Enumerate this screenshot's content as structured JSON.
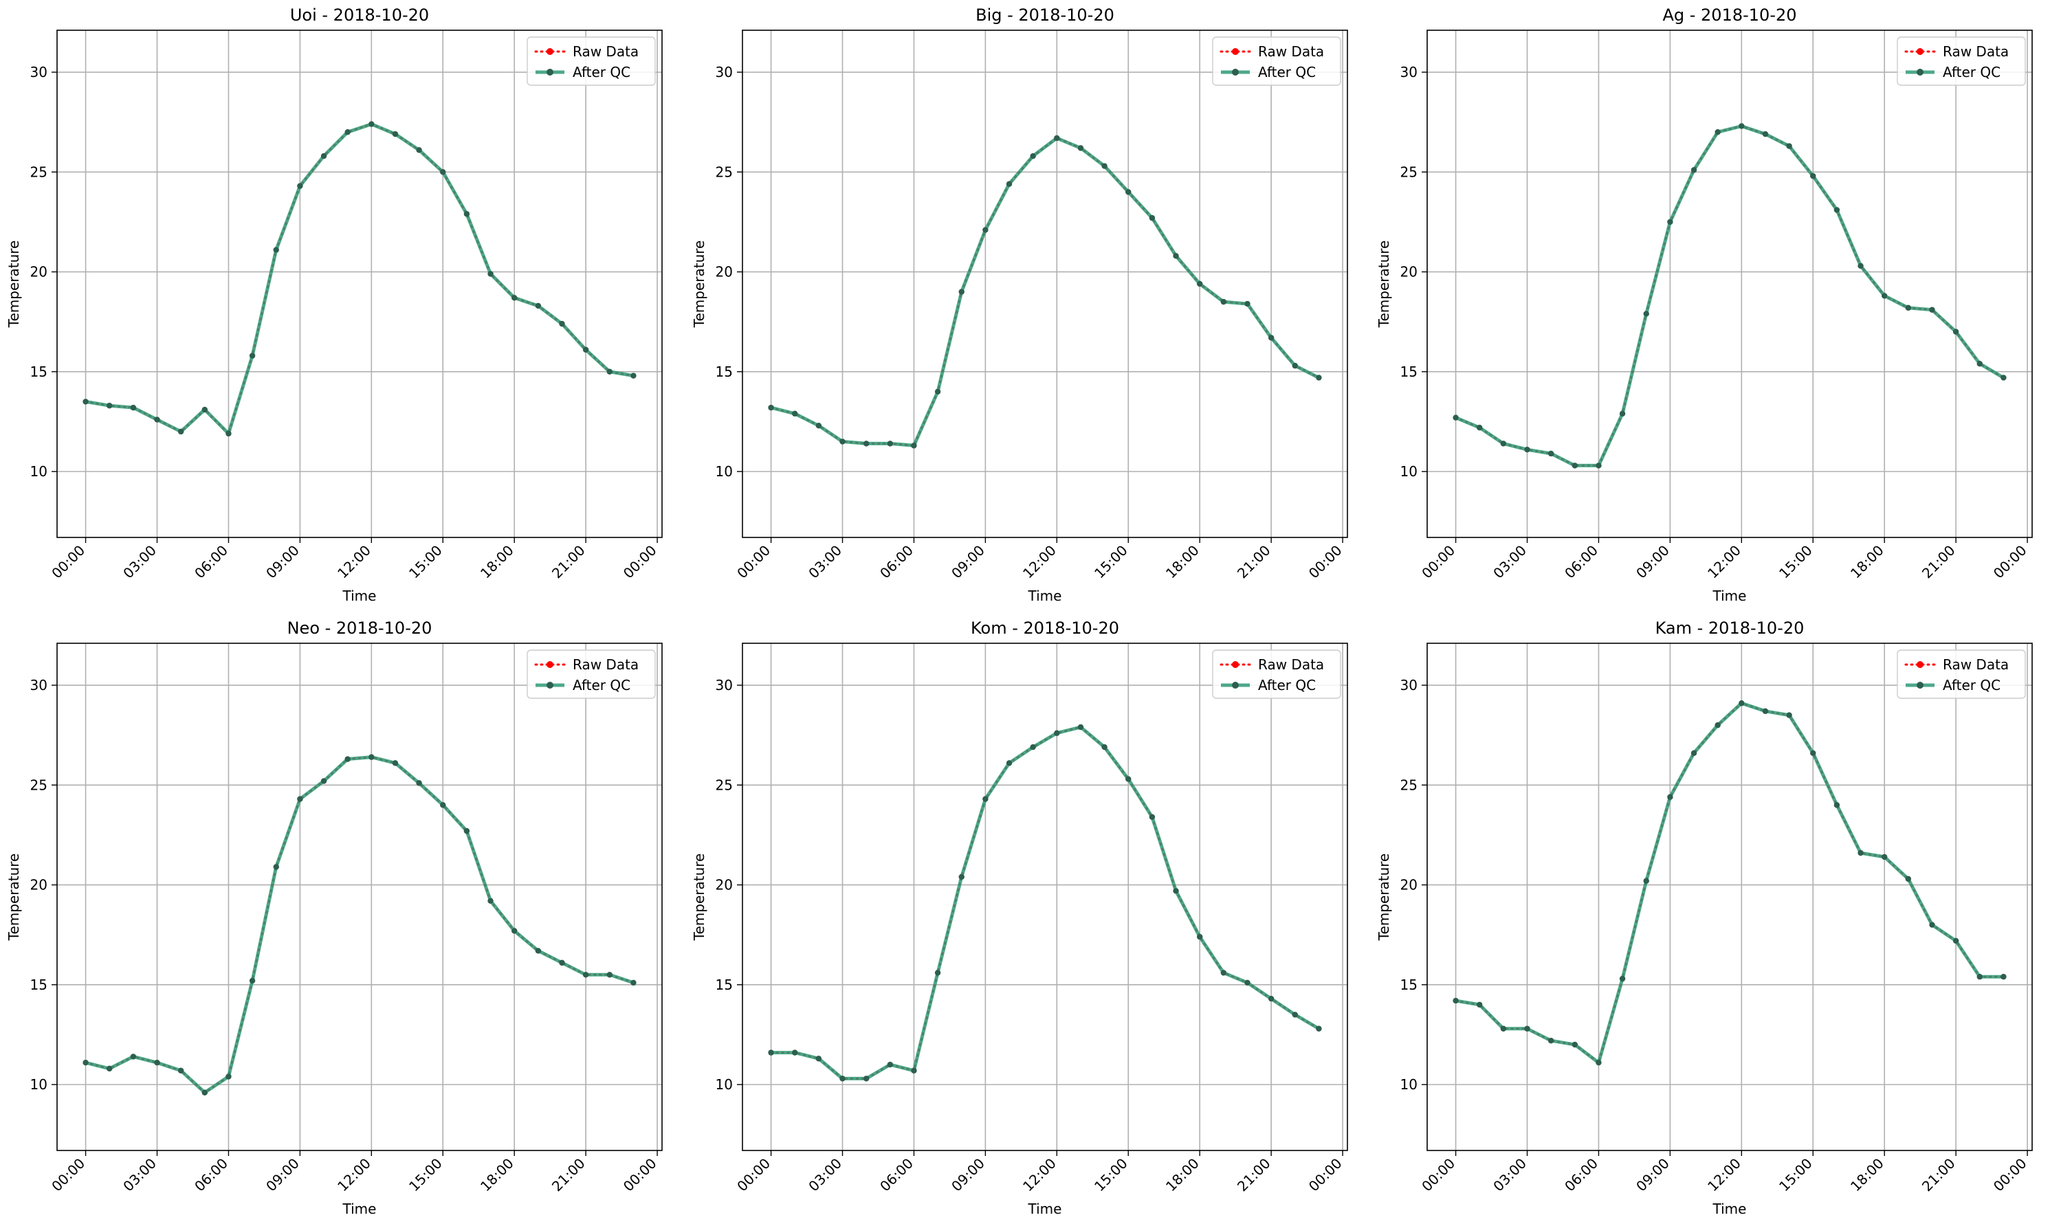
{
  "figure": {
    "legend_labels": [
      "Raw Data",
      "After QC"
    ],
    "colors": {
      "raw": "#ff0000",
      "qc": "#2e9a77",
      "qc_marker": "#2c5f4f",
      "grid": "#b0b0b0"
    }
  },
  "chart_data": [
    {
      "type": "line",
      "title": "Uoi - 2018-10-20",
      "xlabel": "Time",
      "ylabel": "Temperature",
      "x_ticks": [
        "00:00",
        "03:00",
        "06:00",
        "09:00",
        "12:00",
        "15:00",
        "18:00",
        "21:00",
        "00:00"
      ],
      "y_ticks": [
        10,
        15,
        20,
        25,
        30
      ],
      "xlim_hours": [
        -1.2,
        24.2
      ],
      "ylim": [
        6.7,
        32.1
      ],
      "grid": true,
      "legend_position": "top-right",
      "x_hours": [
        0,
        1,
        2,
        3,
        4,
        5,
        6,
        7,
        8,
        9,
        10,
        11,
        12,
        13,
        14,
        15,
        16,
        17,
        18,
        19,
        20,
        21,
        22,
        23
      ],
      "series": [
        {
          "name": "Raw Data",
          "style": "dotted",
          "values": [
            13.5,
            13.3,
            13.2,
            12.6,
            12.0,
            13.1,
            11.9,
            15.8,
            21.1,
            24.3,
            25.8,
            27.0,
            27.4,
            26.9,
            26.1,
            25.0,
            22.9,
            19.9,
            18.7,
            18.3,
            17.4,
            16.1,
            15.0,
            14.8
          ]
        },
        {
          "name": "After QC",
          "style": "solid",
          "values": [
            13.5,
            13.3,
            13.2,
            12.6,
            12.0,
            13.1,
            11.9,
            15.8,
            21.1,
            24.3,
            25.8,
            27.0,
            27.4,
            26.9,
            26.1,
            25.0,
            22.9,
            19.9,
            18.7,
            18.3,
            17.4,
            16.1,
            15.0,
            14.8
          ]
        }
      ]
    },
    {
      "type": "line",
      "title": "Big - 2018-10-20",
      "xlabel": "Time",
      "ylabel": "Temperature",
      "x_ticks": [
        "00:00",
        "03:00",
        "06:00",
        "09:00",
        "12:00",
        "15:00",
        "18:00",
        "21:00",
        "00:00"
      ],
      "y_ticks": [
        10,
        15,
        20,
        25,
        30
      ],
      "xlim_hours": [
        -1.2,
        24.2
      ],
      "ylim": [
        6.7,
        32.1
      ],
      "grid": true,
      "legend_position": "top-right",
      "x_hours": [
        0,
        1,
        2,
        3,
        4,
        5,
        6,
        7,
        8,
        9,
        10,
        11,
        12,
        13,
        14,
        15,
        16,
        17,
        18,
        19,
        20,
        21,
        22,
        23
      ],
      "series": [
        {
          "name": "Raw Data",
          "style": "dotted",
          "values": [
            13.2,
            12.9,
            12.3,
            11.5,
            11.4,
            11.4,
            11.3,
            14.0,
            19.0,
            22.1,
            24.4,
            25.8,
            26.7,
            26.2,
            25.3,
            24.0,
            22.7,
            20.8,
            19.4,
            18.5,
            18.4,
            16.7,
            15.3,
            14.7
          ]
        },
        {
          "name": "After QC",
          "style": "solid",
          "values": [
            13.2,
            12.9,
            12.3,
            11.5,
            11.4,
            11.4,
            11.3,
            14.0,
            19.0,
            22.1,
            24.4,
            25.8,
            26.7,
            26.2,
            25.3,
            24.0,
            22.7,
            20.8,
            19.4,
            18.5,
            18.4,
            16.7,
            15.3,
            14.7
          ]
        }
      ]
    },
    {
      "type": "line",
      "title": "Ag - 2018-10-20",
      "xlabel": "Time",
      "ylabel": "Temperature",
      "x_ticks": [
        "00:00",
        "03:00",
        "06:00",
        "09:00",
        "12:00",
        "15:00",
        "18:00",
        "21:00",
        "00:00"
      ],
      "y_ticks": [
        10,
        15,
        20,
        25,
        30
      ],
      "xlim_hours": [
        -1.2,
        24.2
      ],
      "ylim": [
        6.7,
        32.1
      ],
      "grid": true,
      "legend_position": "top-right",
      "x_hours": [
        0,
        1,
        2,
        3,
        4,
        5,
        6,
        7,
        8,
        9,
        10,
        11,
        12,
        13,
        14,
        15,
        16,
        17,
        18,
        19,
        20,
        21,
        22,
        23
      ],
      "series": [
        {
          "name": "Raw Data",
          "style": "dotted",
          "values": [
            12.7,
            12.2,
            11.4,
            11.1,
            10.9,
            10.3,
            10.3,
            12.9,
            17.9,
            22.5,
            25.1,
            27.0,
            27.3,
            26.9,
            26.3,
            24.8,
            23.1,
            20.3,
            18.8,
            18.2,
            18.1,
            17.0,
            15.4,
            14.7
          ]
        },
        {
          "name": "After QC",
          "style": "solid",
          "values": [
            12.7,
            12.2,
            11.4,
            11.1,
            10.9,
            10.3,
            10.3,
            12.9,
            17.9,
            22.5,
            25.1,
            27.0,
            27.3,
            26.9,
            26.3,
            24.8,
            23.1,
            20.3,
            18.8,
            18.2,
            18.1,
            17.0,
            15.4,
            14.7
          ]
        }
      ]
    },
    {
      "type": "line",
      "title": "Neo - 2018-10-20",
      "xlabel": "Time",
      "ylabel": "Temperature",
      "x_ticks": [
        "00:00",
        "03:00",
        "06:00",
        "09:00",
        "12:00",
        "15:00",
        "18:00",
        "21:00",
        "00:00"
      ],
      "y_ticks": [
        10,
        15,
        20,
        25,
        30
      ],
      "xlim_hours": [
        -1.2,
        24.2
      ],
      "ylim": [
        6.7,
        32.1
      ],
      "grid": true,
      "legend_position": "top-right",
      "x_hours": [
        0,
        1,
        2,
        3,
        4,
        5,
        6,
        7,
        8,
        9,
        10,
        11,
        12,
        13,
        14,
        15,
        16,
        17,
        18,
        19,
        20,
        21,
        22,
        23
      ],
      "series": [
        {
          "name": "Raw Data",
          "style": "dotted",
          "values": [
            11.1,
            10.8,
            11.4,
            11.1,
            10.7,
            9.6,
            10.4,
            15.2,
            20.9,
            24.3,
            25.2,
            26.3,
            26.4,
            26.1,
            25.1,
            24.0,
            22.7,
            19.2,
            17.7,
            16.7,
            16.1,
            15.5,
            15.5,
            15.1
          ]
        },
        {
          "name": "After QC",
          "style": "solid",
          "values": [
            11.1,
            10.8,
            11.4,
            11.1,
            10.7,
            9.6,
            10.4,
            15.2,
            20.9,
            24.3,
            25.2,
            26.3,
            26.4,
            26.1,
            25.1,
            24.0,
            22.7,
            19.2,
            17.7,
            16.7,
            16.1,
            15.5,
            15.5,
            15.1
          ]
        }
      ]
    },
    {
      "type": "line",
      "title": "Kom - 2018-10-20",
      "xlabel": "Time",
      "ylabel": "Temperature",
      "x_ticks": [
        "00:00",
        "03:00",
        "06:00",
        "09:00",
        "12:00",
        "15:00",
        "18:00",
        "21:00",
        "00:00"
      ],
      "y_ticks": [
        10,
        15,
        20,
        25,
        30
      ],
      "xlim_hours": [
        -1.2,
        24.2
      ],
      "ylim": [
        6.7,
        32.1
      ],
      "grid": true,
      "legend_position": "top-right",
      "x_hours": [
        0,
        1,
        2,
        3,
        4,
        5,
        6,
        7,
        8,
        9,
        10,
        11,
        12,
        13,
        14,
        15,
        16,
        17,
        18,
        19,
        20,
        21,
        22,
        23
      ],
      "series": [
        {
          "name": "Raw Data",
          "style": "dotted",
          "values": [
            11.6,
            11.6,
            11.3,
            10.3,
            10.3,
            11.0,
            10.7,
            15.6,
            20.4,
            24.3,
            26.1,
            26.9,
            27.6,
            27.9,
            26.9,
            25.3,
            23.4,
            19.7,
            17.4,
            15.6,
            15.1,
            14.3,
            13.5,
            12.8
          ]
        },
        {
          "name": "After QC",
          "style": "solid",
          "values": [
            11.6,
            11.6,
            11.3,
            10.3,
            10.3,
            11.0,
            10.7,
            15.6,
            20.4,
            24.3,
            26.1,
            26.9,
            27.6,
            27.9,
            26.9,
            25.3,
            23.4,
            19.7,
            17.4,
            15.6,
            15.1,
            14.3,
            13.5,
            12.8
          ]
        }
      ]
    },
    {
      "type": "line",
      "title": "Kam - 2018-10-20",
      "xlabel": "Time",
      "ylabel": "Temperature",
      "x_ticks": [
        "00:00",
        "03:00",
        "06:00",
        "09:00",
        "12:00",
        "15:00",
        "18:00",
        "21:00",
        "00:00"
      ],
      "y_ticks": [
        10,
        15,
        20,
        25,
        30
      ],
      "xlim_hours": [
        -1.2,
        24.2
      ],
      "ylim": [
        6.7,
        32.1
      ],
      "grid": true,
      "legend_position": "top-right",
      "x_hours": [
        0,
        1,
        2,
        3,
        4,
        5,
        6,
        7,
        8,
        9,
        10,
        11,
        12,
        13,
        14,
        15,
        16,
        17,
        18,
        19,
        20,
        21,
        22,
        23
      ],
      "series": [
        {
          "name": "Raw Data",
          "style": "dotted",
          "values": [
            14.2,
            14.0,
            12.8,
            12.8,
            12.2,
            12.0,
            11.1,
            15.3,
            20.2,
            24.4,
            26.6,
            28.0,
            29.1,
            28.7,
            28.5,
            26.6,
            24.0,
            21.6,
            21.4,
            20.3,
            18.0,
            17.2,
            15.4,
            15.4
          ]
        },
        {
          "name": "After QC",
          "style": "solid",
          "values": [
            14.2,
            14.0,
            12.8,
            12.8,
            12.2,
            12.0,
            11.1,
            15.3,
            20.2,
            24.4,
            26.6,
            28.0,
            29.1,
            28.7,
            28.5,
            26.6,
            24.0,
            21.6,
            21.4,
            20.3,
            18.0,
            17.2,
            15.4,
            15.4
          ]
        }
      ]
    }
  ]
}
